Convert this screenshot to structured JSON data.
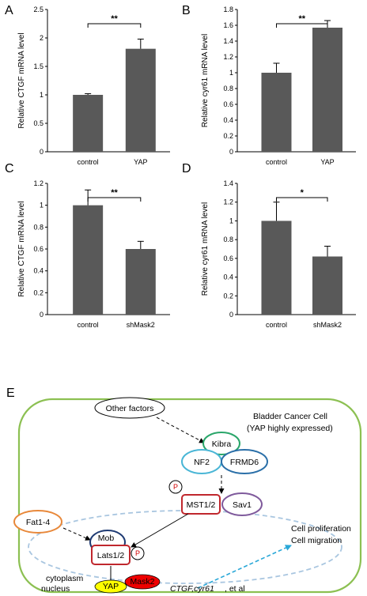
{
  "chart_data": [
    {
      "panel": "A",
      "type": "bar",
      "categories": [
        "control",
        "YAP"
      ],
      "values": [
        1.0,
        1.81
      ],
      "errors": [
        0.02,
        0.17
      ],
      "ylabel": "Relative CTGF mRNA level",
      "ylim": [
        0,
        2.5
      ],
      "yticks": [
        "0",
        "0.5",
        "1",
        "1.5",
        "2",
        "2.5"
      ],
      "significance": "**",
      "bar_color": "#595959"
    },
    {
      "panel": "B",
      "type": "bar",
      "categories": [
        "control",
        "YAP"
      ],
      "values": [
        1.0,
        1.57
      ],
      "errors": [
        0.12,
        0.09
      ],
      "ylabel": "Relative cyr61 mRNA level",
      "ylim": [
        0,
        1.8
      ],
      "yticks": [
        "0",
        "0.2",
        "0.4",
        "0.6",
        "0.8",
        "1",
        "1.2",
        "1.4",
        "1.6",
        "1.8"
      ],
      "significance": "**",
      "bar_color": "#595959"
    },
    {
      "panel": "C",
      "type": "bar",
      "categories": [
        "control",
        "shMask2"
      ],
      "values": [
        1.0,
        0.6
      ],
      "errors": [
        0.14,
        0.07
      ],
      "ylabel": "Relative CTGF mRNA level",
      "ylim": [
        0,
        1.2
      ],
      "yticks": [
        "0",
        "0.2",
        "0.4",
        "0.6",
        "0.8",
        "1",
        "1.2"
      ],
      "significance": "**",
      "bar_color": "#595959"
    },
    {
      "panel": "D",
      "type": "bar",
      "categories": [
        "control",
        "shMask2"
      ],
      "values": [
        1.0,
        0.62
      ],
      "errors": [
        0.2,
        0.11
      ],
      "ylabel": "Relative cyr61 mRNA level",
      "ylim": [
        0,
        1.4
      ],
      "yticks": [
        "0",
        "0.2",
        "0.4",
        "0.6",
        "0.8",
        "1",
        "1.2",
        "1.4"
      ],
      "significance": "*",
      "bar_color": "#595959"
    }
  ],
  "diagram": {
    "panel_letter": "E",
    "cell_title_line1": "Bladder Cancer Cell",
    "cell_title_line2": "(YAP highly expressed)",
    "other_factors": "Other factors",
    "kibra": "Kibra",
    "nf2": "NF2",
    "frmd6": "FRMD6",
    "mst": "MST1/2",
    "sav1": "Sav1",
    "fat": "Fat1-4",
    "mob": "Mob",
    "lats": "Lats1/2",
    "phospho": "P",
    "cytoplasm": "cytoplasm",
    "nucleus": "nucleus",
    "yap": "YAP",
    "mask2": "Mask2",
    "tead": "TEAD",
    "genes_italic": "CTGF,cyr61",
    "genes_rest": ", et al",
    "outcome_line1": "Cell proliferation",
    "outcome_line2": "Cell migration",
    "colors": {
      "cell_border": "#8cc052",
      "kibra": "#2aa66a",
      "nf2": "#4ab6d6",
      "frmd6": "#2a6fa8",
      "mst": "#c0272d",
      "sav1": "#7f5a9c",
      "fat": "#e8883a",
      "mob": "#1f3b73",
      "lats": "#c0272d",
      "yap_fill": "#ffff00",
      "mask2_fill": "#ee0000",
      "tead": "#7da654",
      "dashed_blue": "#2aa8d8",
      "nucleus_border": "#a9c6e0",
      "dna": "#3b6db0"
    }
  }
}
